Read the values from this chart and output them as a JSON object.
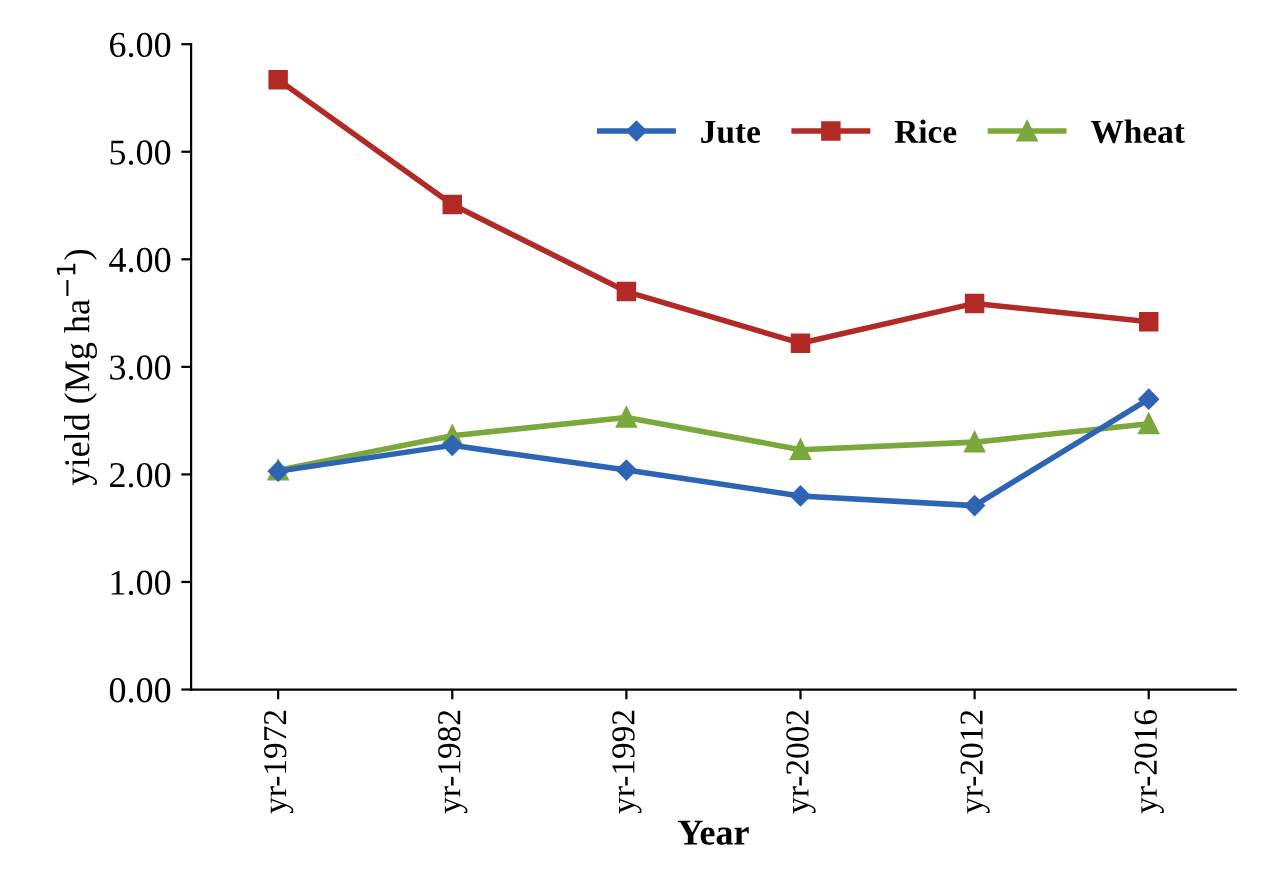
{
  "chart_data": {
    "type": "line",
    "xlabel": "Year",
    "ylabel": "yield (Mg ha$^{−1}$)",
    "categories": [
      "yr-1972",
      "yr-1982",
      "yr-1992",
      "yr-2002",
      "yr-2012",
      "yr-2016"
    ],
    "series": [
      {
        "name": "Jute",
        "color": "#2e64b4",
        "marker": "diamond",
        "values": [
          2.03,
          2.27,
          2.04,
          1.8,
          1.71,
          2.7
        ]
      },
      {
        "name": "Rice",
        "color": "#b22a26",
        "marker": "square",
        "values": [
          5.67,
          4.51,
          3.7,
          3.22,
          3.59,
          3.42
        ]
      },
      {
        "name": "Wheat",
        "color": "#7ba83c",
        "marker": "triangle",
        "values": [
          2.04,
          2.36,
          2.53,
          2.23,
          2.3,
          2.47
        ]
      }
    ],
    "ylim": [
      0,
      6
    ],
    "yticks": [
      {
        "value": 0,
        "label": "0.00"
      },
      {
        "value": 1,
        "label": "1.00"
      },
      {
        "value": 2,
        "label": "2.00"
      },
      {
        "value": 3,
        "label": "3.00"
      },
      {
        "value": 4,
        "label": "4.00"
      },
      {
        "value": 5,
        "label": "5.00"
      },
      {
        "value": 6,
        "label": "6.00"
      }
    ],
    "grid": false,
    "legend": "top right",
    "line_style": "solid"
  }
}
